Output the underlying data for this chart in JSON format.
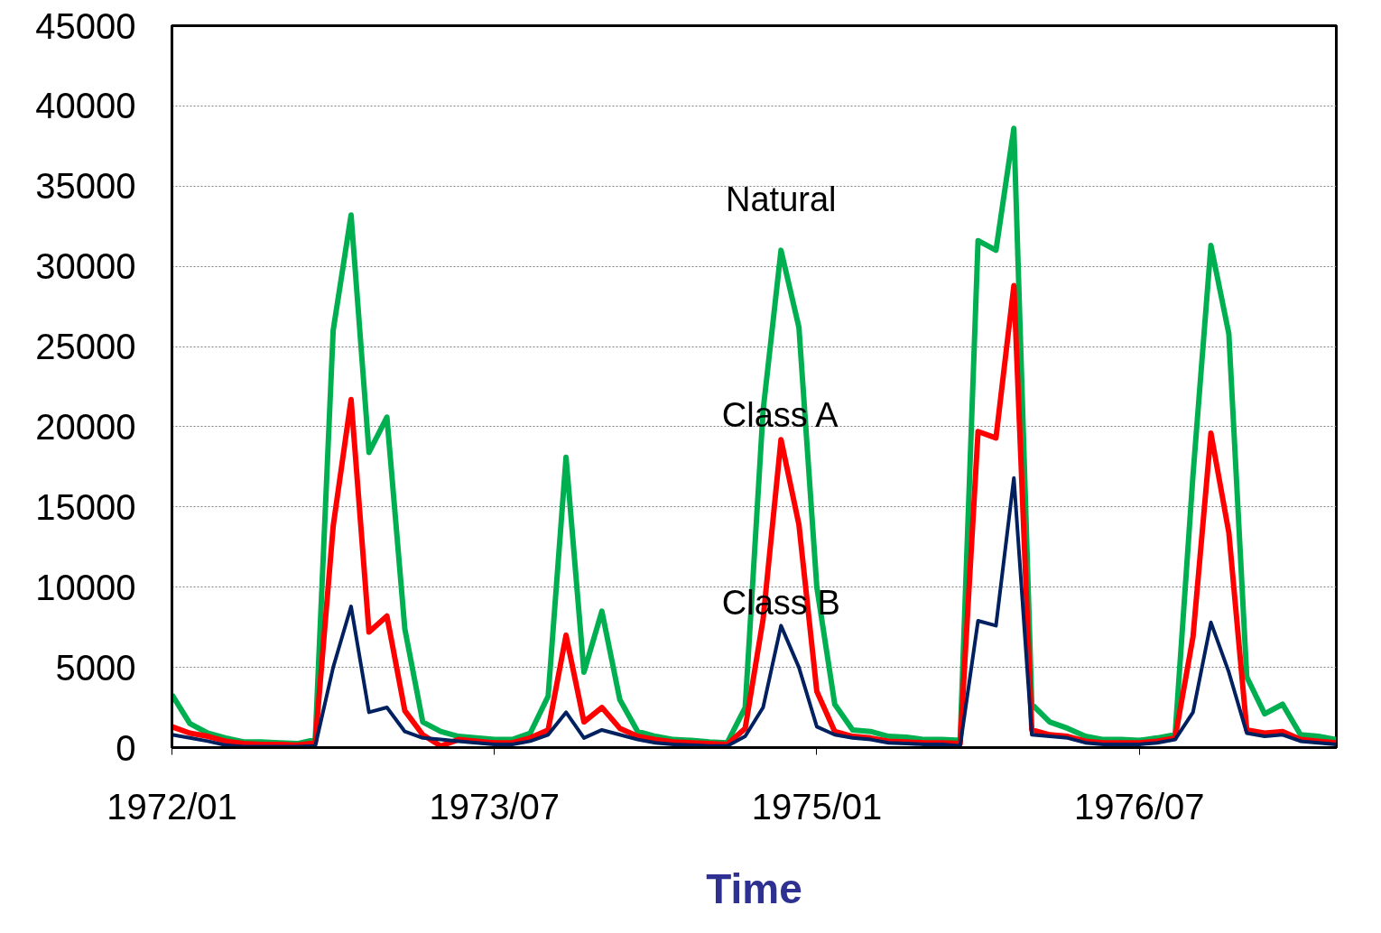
{
  "chart_data": {
    "type": "line",
    "xlabel": "Time",
    "x": [
      "1972-01",
      "1972-02",
      "1972-03",
      "1972-04",
      "1972-05",
      "1972-06",
      "1972-07",
      "1972-08",
      "1972-09",
      "1972-10",
      "1972-11",
      "1972-12",
      "1973-01",
      "1973-02",
      "1973-03",
      "1973-04",
      "1973-05",
      "1973-06",
      "1973-07",
      "1973-08",
      "1973-09",
      "1973-10",
      "1973-11",
      "1973-12",
      "1974-01",
      "1974-02",
      "1974-03",
      "1974-04",
      "1974-05",
      "1974-06",
      "1974-07",
      "1974-08",
      "1974-09",
      "1974-10",
      "1974-11",
      "1974-12",
      "1975-01",
      "1975-02",
      "1975-03",
      "1975-04",
      "1975-05",
      "1975-06",
      "1975-07",
      "1975-08",
      "1975-09",
      "1975-10",
      "1975-11",
      "1975-12",
      "1976-01",
      "1976-02",
      "1976-03",
      "1976-04",
      "1976-05",
      "1976-06",
      "1976-07",
      "1976-08",
      "1976-09",
      "1976-10",
      "1976-11",
      "1976-12",
      "1977-01",
      "1977-02",
      "1977-03",
      "1977-04",
      "1977-05",
      "1977-06"
    ],
    "series": [
      {
        "name": "Natural",
        "color": "#00b050",
        "values": [
          3300,
          1500,
          900,
          600,
          350,
          350,
          300,
          250,
          500,
          26000,
          33200,
          18400,
          20600,
          7400,
          1600,
          1000,
          700,
          600,
          500,
          500,
          900,
          3200,
          18100,
          4700,
          8500,
          3000,
          1000,
          700,
          500,
          450,
          350,
          300,
          2500,
          21000,
          31000,
          26200,
          10000,
          2700,
          1100,
          1000,
          700,
          650,
          500,
          500,
          450,
          31600,
          31000,
          38600,
          2700,
          1600,
          1200,
          700,
          500,
          500,
          450,
          600,
          800,
          17000,
          31300,
          25800,
          4400,
          2100,
          2700,
          800,
          700,
          500
        ]
      },
      {
        "name": "Class A",
        "color": "#ff0000",
        "values": [
          1300,
          900,
          700,
          400,
          250,
          200,
          200,
          150,
          300,
          13800,
          21700,
          7200,
          8200,
          2300,
          800,
          100,
          500,
          400,
          300,
          300,
          600,
          1100,
          7000,
          1600,
          2500,
          1200,
          700,
          500,
          350,
          300,
          250,
          200,
          1200,
          8000,
          19200,
          13900,
          3500,
          1000,
          700,
          600,
          400,
          350,
          300,
          300,
          250,
          19700,
          19300,
          28800,
          1100,
          800,
          700,
          400,
          300,
          300,
          300,
          400,
          600,
          6900,
          19600,
          13400,
          1100,
          900,
          1000,
          500,
          400,
          300
        ]
      },
      {
        "name": "Class B",
        "color": "#002060",
        "values": [
          800,
          600,
          400,
          150,
          50,
          50,
          50,
          50,
          100,
          5000,
          8800,
          2200,
          2500,
          1000,
          600,
          500,
          400,
          300,
          200,
          200,
          400,
          800,
          2200,
          600,
          1100,
          800,
          500,
          300,
          200,
          150,
          100,
          100,
          700,
          2500,
          7600,
          5000,
          1300,
          800,
          600,
          500,
          300,
          250,
          200,
          200,
          100,
          7900,
          7600,
          16800,
          800,
          700,
          600,
          300,
          200,
          200,
          200,
          300,
          500,
          2200,
          7800,
          4700,
          900,
          700,
          800,
          400,
          300,
          200
        ]
      }
    ],
    "xlim": [
      "1972-01",
      "1977-06"
    ],
    "xticks": [
      {
        "value": "1972-01",
        "label": "1972/01"
      },
      {
        "value": "1973-07",
        "label": "1973/07"
      },
      {
        "value": "1975-01",
        "label": "1975/01"
      },
      {
        "value": "1976-07",
        "label": "1976/07"
      }
    ],
    "ylim": [
      0,
      45000
    ],
    "yticks": [
      0,
      5000,
      10000,
      15000,
      20000,
      25000,
      30000,
      35000,
      40000,
      45000
    ],
    "grid": "y",
    "line_style": "solid",
    "legend": false
  }
}
